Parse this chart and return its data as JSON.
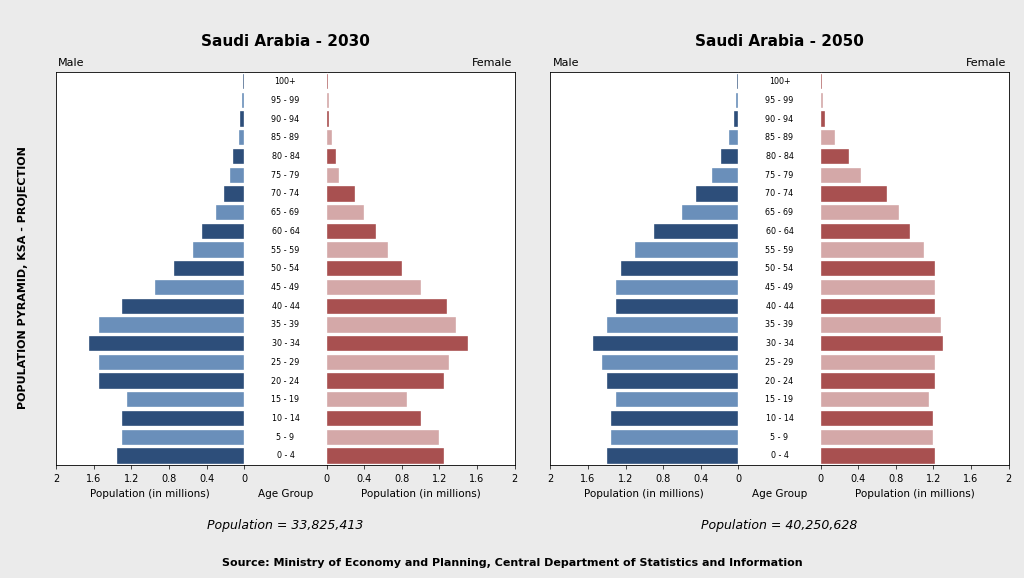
{
  "age_groups": [
    "0 - 4",
    "5 - 9",
    "10 - 14",
    "15 - 19",
    "20 - 24",
    "25 - 29",
    "30 - 34",
    "35 - 39",
    "40 - 44",
    "45 - 49",
    "50 - 54",
    "55 - 59",
    "60 - 64",
    "65 - 69",
    "70 - 74",
    "75 - 79",
    "80 - 84",
    "85 - 89",
    "90 - 94",
    "95 - 99",
    "100+"
  ],
  "year2030": {
    "title": "Saudi Arabia - 2030",
    "population": "Population = 33,825,413",
    "male": [
      1.35,
      1.3,
      1.3,
      1.25,
      1.55,
      1.55,
      1.65,
      1.55,
      1.3,
      0.95,
      0.75,
      0.55,
      0.45,
      0.3,
      0.22,
      0.15,
      0.12,
      0.06,
      0.04,
      0.02,
      0.01
    ],
    "female": [
      1.25,
      1.2,
      1.0,
      0.85,
      1.25,
      1.3,
      1.5,
      1.38,
      1.28,
      1.0,
      0.8,
      0.65,
      0.53,
      0.4,
      0.3,
      0.13,
      0.1,
      0.06,
      0.03,
      0.02,
      0.01
    ]
  },
  "year2050": {
    "title": "Saudi Arabia - 2050",
    "population": "Population = 40,250,628",
    "male": [
      1.4,
      1.35,
      1.35,
      1.3,
      1.4,
      1.45,
      1.55,
      1.4,
      1.3,
      1.3,
      1.25,
      1.1,
      0.9,
      0.6,
      0.45,
      0.28,
      0.18,
      0.1,
      0.05,
      0.02,
      0.01
    ],
    "female": [
      1.22,
      1.2,
      1.2,
      1.15,
      1.22,
      1.22,
      1.3,
      1.28,
      1.22,
      1.22,
      1.22,
      1.1,
      0.95,
      0.83,
      0.7,
      0.43,
      0.3,
      0.15,
      0.05,
      0.02,
      0.01
    ]
  },
  "male_dark": "#2d4e7a",
  "male_light": "#6a8fba",
  "female_dark": "#a85050",
  "female_light": "#d4a8a8",
  "xlim": 2.0,
  "source": "Source: Ministry of Economy and Planning, Central Department of Statistics and Information",
  "ylabel_rotated": "POPULATION PYRAMID, KSA - PROJECTION",
  "background_color": "#ebebeb"
}
